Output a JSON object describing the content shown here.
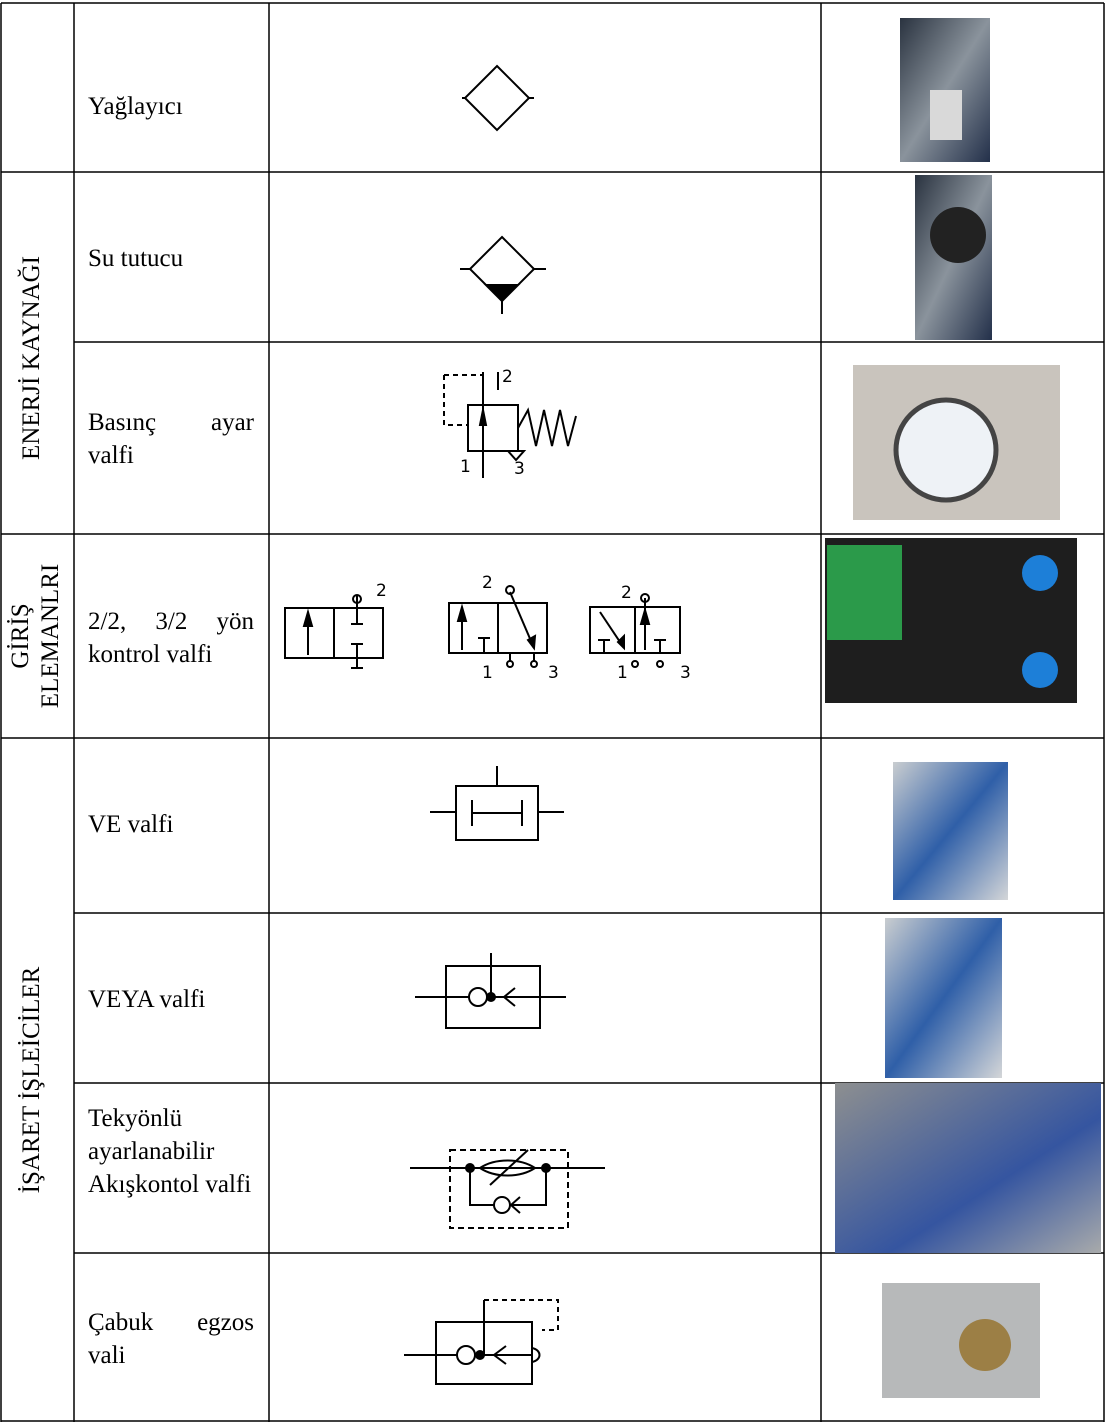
{
  "table": {
    "sections": [
      {
        "items": [
          {
            "name": "Yağlayıcı"
          }
        ]
      },
      {
        "label": "ENERJİ KAYNAĞI",
        "items": [
          {
            "name": "Su tutucu"
          },
          {
            "name": "Basınç ayar valfi",
            "symbol_ports": [
              "2",
              "1",
              "3"
            ]
          }
        ]
      },
      {
        "label": "GİRİŞ ELEMANLRI",
        "items": [
          {
            "name": "2/2, 3/2 yön kontrol valfi",
            "symbol_ports": [
              "2",
              "2",
              "1",
              "3",
              "2",
              "1",
              "3"
            ]
          }
        ]
      },
      {
        "label": "İŞARET İŞLEİCİLER",
        "items": [
          {
            "name": "VE valfi"
          },
          {
            "name": "VEYA valfi"
          },
          {
            "name": "Tekyönlü ayarlanabilir Akışkontol valfi"
          },
          {
            "name": "Çabuk egzos vali"
          }
        ]
      }
    ]
  }
}
